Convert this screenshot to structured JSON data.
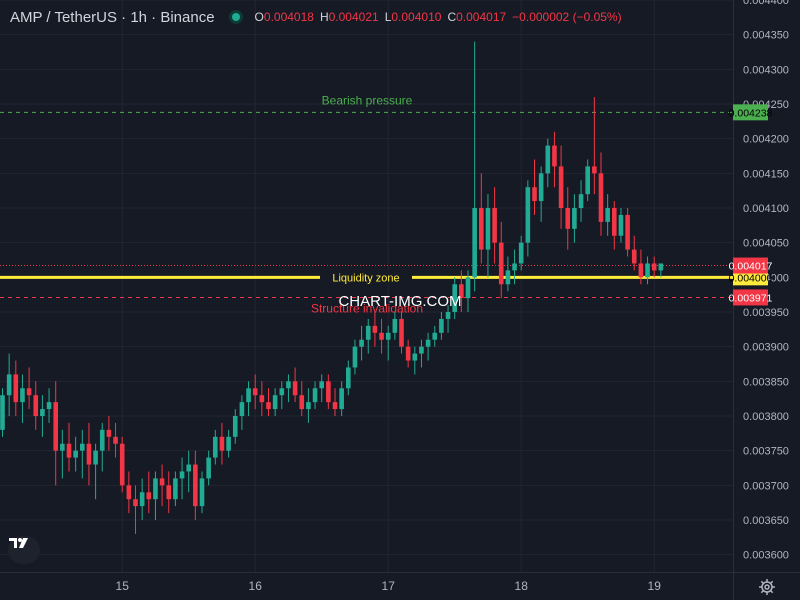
{
  "header": {
    "symbol": "AMP / TetherUS · 1h · Binance",
    "o_label": "O",
    "o_value": "0.004018",
    "h_label": "H",
    "h_value": "0.004021",
    "l_label": "L",
    "l_value": "0.004010",
    "c_label": "C",
    "c_value": "0.004017",
    "change": "−0.000002 (−0.05%)"
  },
  "watermark": "CHART-IMG.COM",
  "colors": {
    "background": "#161a25",
    "grid": "#232632",
    "up": "#22ab94",
    "down": "#f23645",
    "axis_text": "#b2b5be",
    "bearish_line": "#4caf50",
    "liquidity_line": "#ffeb3b",
    "structure_line": "#f23645"
  },
  "icons": {
    "logo": "tradingview-logo-icon",
    "settings": "gear-icon"
  },
  "chart_data": {
    "type": "candlestick",
    "title": "AMP / TetherUS · 1h · Binance",
    "ylim": [
      0.003575,
      0.0044
    ],
    "y_ticks": [
      {
        "value": 0.0044,
        "label": "0.004400"
      },
      {
        "value": 0.00435,
        "label": "0.004350"
      },
      {
        "value": 0.0043,
        "label": "0.004300"
      },
      {
        "value": 0.00425,
        "label": "0.004250"
      },
      {
        "value": 0.0042,
        "label": "0.004200"
      },
      {
        "value": 0.00415,
        "label": "0.004150"
      },
      {
        "value": 0.0041,
        "label": "0.004100"
      },
      {
        "value": 0.00405,
        "label": "0.004050"
      },
      {
        "value": 0.004,
        "label": "0.004000"
      },
      {
        "value": 0.00395,
        "label": "0.003950"
      },
      {
        "value": 0.0039,
        "label": "0.003900"
      },
      {
        "value": 0.00385,
        "label": "0.003850"
      },
      {
        "value": 0.0038,
        "label": "0.003800"
      },
      {
        "value": 0.00375,
        "label": "0.003750"
      },
      {
        "value": 0.0037,
        "label": "0.003700"
      },
      {
        "value": 0.00365,
        "label": "0.003650"
      },
      {
        "value": 0.0036,
        "label": "0.003600"
      }
    ],
    "x_ticks": [
      "15",
      "16",
      "17",
      "18",
      "19"
    ],
    "x_tick_candle_index": [
      18,
      38,
      58,
      78,
      98
    ],
    "candles": [
      [
        0.00378,
        0.00384,
        0.00377,
        0.00383
      ],
      [
        0.00383,
        0.00389,
        0.0038,
        0.00386
      ],
      [
        0.00386,
        0.00388,
        0.0038,
        0.00382
      ],
      [
        0.00382,
        0.00386,
        0.00379,
        0.00384
      ],
      [
        0.00384,
        0.00387,
        0.00381,
        0.00383
      ],
      [
        0.00383,
        0.00385,
        0.00378,
        0.0038
      ],
      [
        0.0038,
        0.00383,
        0.00377,
        0.00381
      ],
      [
        0.00381,
        0.00384,
        0.00379,
        0.00382
      ],
      [
        0.00382,
        0.00385,
        0.0037,
        0.00375
      ],
      [
        0.00375,
        0.00378,
        0.00371,
        0.00376
      ],
      [
        0.00376,
        0.00379,
        0.00372,
        0.00374
      ],
      [
        0.00374,
        0.00377,
        0.00372,
        0.00375
      ],
      [
        0.00375,
        0.00378,
        0.00371,
        0.00376
      ],
      [
        0.00376,
        0.00379,
        0.0037,
        0.00373
      ],
      [
        0.00373,
        0.00376,
        0.00368,
        0.00375
      ],
      [
        0.00375,
        0.00379,
        0.00372,
        0.00378
      ],
      [
        0.00378,
        0.0038,
        0.00375,
        0.00377
      ],
      [
        0.00377,
        0.00379,
        0.00374,
        0.00376
      ],
      [
        0.00376,
        0.00377,
        0.00369,
        0.0037
      ],
      [
        0.0037,
        0.00372,
        0.00366,
        0.00368
      ],
      [
        0.00368,
        0.0037,
        0.00363,
        0.00367
      ],
      [
        0.00367,
        0.00371,
        0.00365,
        0.00369
      ],
      [
        0.00369,
        0.00372,
        0.00366,
        0.00368
      ],
      [
        0.00368,
        0.00372,
        0.00365,
        0.00371
      ],
      [
        0.00371,
        0.00373,
        0.00367,
        0.0037
      ],
      [
        0.0037,
        0.00372,
        0.00366,
        0.00368
      ],
      [
        0.00368,
        0.00372,
        0.00367,
        0.00371
      ],
      [
        0.00371,
        0.00374,
        0.00368,
        0.00372
      ],
      [
        0.00372,
        0.00375,
        0.00369,
        0.00373
      ],
      [
        0.00373,
        0.00375,
        0.00365,
        0.00367
      ],
      [
        0.00367,
        0.00372,
        0.00366,
        0.00371
      ],
      [
        0.00371,
        0.00375,
        0.0037,
        0.00374
      ],
      [
        0.00374,
        0.00378,
        0.00373,
        0.00377
      ],
      [
        0.00377,
        0.00379,
        0.00373,
        0.00375
      ],
      [
        0.00375,
        0.00378,
        0.00374,
        0.00377
      ],
      [
        0.00377,
        0.00381,
        0.00376,
        0.0038
      ],
      [
        0.0038,
        0.00383,
        0.00378,
        0.00382
      ],
      [
        0.00382,
        0.00385,
        0.0038,
        0.00384
      ],
      [
        0.00384,
        0.00386,
        0.00381,
        0.00383
      ],
      [
        0.00383,
        0.00385,
        0.0038,
        0.00382
      ],
      [
        0.00382,
        0.00384,
        0.0038,
        0.00381
      ],
      [
        0.00381,
        0.00384,
        0.0038,
        0.00383
      ],
      [
        0.00383,
        0.00385,
        0.00381,
        0.00384
      ],
      [
        0.00384,
        0.00386,
        0.00382,
        0.00385
      ],
      [
        0.00385,
        0.00387,
        0.00382,
        0.00383
      ],
      [
        0.00383,
        0.00385,
        0.0038,
        0.00381
      ],
      [
        0.00381,
        0.00384,
        0.00379,
        0.00382
      ],
      [
        0.00382,
        0.00385,
        0.00381,
        0.00384
      ],
      [
        0.00384,
        0.00386,
        0.00382,
        0.00385
      ],
      [
        0.00385,
        0.00386,
        0.00381,
        0.00382
      ],
      [
        0.00382,
        0.00384,
        0.0038,
        0.00381
      ],
      [
        0.00381,
        0.00385,
        0.0038,
        0.00384
      ],
      [
        0.00384,
        0.00388,
        0.00383,
        0.00387
      ],
      [
        0.00387,
        0.00391,
        0.00386,
        0.0039
      ],
      [
        0.0039,
        0.00393,
        0.00388,
        0.00391
      ],
      [
        0.00391,
        0.00394,
        0.00389,
        0.00393
      ],
      [
        0.00393,
        0.00395,
        0.0039,
        0.00392
      ],
      [
        0.00392,
        0.00394,
        0.00389,
        0.00391
      ],
      [
        0.00391,
        0.00393,
        0.00388,
        0.00392
      ],
      [
        0.00392,
        0.00395,
        0.00391,
        0.00394
      ],
      [
        0.00394,
        0.00395,
        0.00389,
        0.0039
      ],
      [
        0.0039,
        0.00391,
        0.00387,
        0.00388
      ],
      [
        0.00388,
        0.0039,
        0.00386,
        0.00389
      ],
      [
        0.00389,
        0.00391,
        0.00387,
        0.0039
      ],
      [
        0.0039,
        0.00392,
        0.00388,
        0.00391
      ],
      [
        0.00391,
        0.00393,
        0.0039,
        0.00392
      ],
      [
        0.00392,
        0.00395,
        0.00391,
        0.00394
      ],
      [
        0.00394,
        0.00396,
        0.00392,
        0.00395
      ],
      [
        0.00395,
        0.004,
        0.00394,
        0.00399
      ],
      [
        0.00399,
        0.00401,
        0.00395,
        0.00397
      ],
      [
        0.00397,
        0.00401,
        0.00395,
        0.004
      ],
      [
        0.004,
        0.00434,
        0.00398,
        0.0041
      ],
      [
        0.0041,
        0.00415,
        0.00402,
        0.00404
      ],
      [
        0.00404,
        0.00412,
        0.004,
        0.0041
      ],
      [
        0.0041,
        0.00413,
        0.00402,
        0.00405
      ],
      [
        0.00405,
        0.00408,
        0.00397,
        0.00399
      ],
      [
        0.00399,
        0.00403,
        0.00398,
        0.00401
      ],
      [
        0.00401,
        0.00404,
        0.00399,
        0.00402
      ],
      [
        0.00402,
        0.00406,
        0.00401,
        0.00405
      ],
      [
        0.00405,
        0.00414,
        0.00403,
        0.00413
      ],
      [
        0.00413,
        0.00417,
        0.00409,
        0.00411
      ],
      [
        0.00411,
        0.00416,
        0.00408,
        0.00415
      ],
      [
        0.00415,
        0.0042,
        0.00413,
        0.00419
      ],
      [
        0.00419,
        0.00421,
        0.00413,
        0.00416
      ],
      [
        0.00416,
        0.00419,
        0.00407,
        0.0041
      ],
      [
        0.0041,
        0.00413,
        0.00404,
        0.00407
      ],
      [
        0.00407,
        0.00412,
        0.00405,
        0.0041
      ],
      [
        0.0041,
        0.00414,
        0.00408,
        0.00412
      ],
      [
        0.00412,
        0.00417,
        0.00411,
        0.00416
      ],
      [
        0.00416,
        0.00426,
        0.00412,
        0.00415
      ],
      [
        0.00415,
        0.00418,
        0.00406,
        0.00408
      ],
      [
        0.00408,
        0.00412,
        0.00406,
        0.0041
      ],
      [
        0.0041,
        0.00411,
        0.00404,
        0.00406
      ],
      [
        0.00406,
        0.0041,
        0.00405,
        0.00409
      ],
      [
        0.00409,
        0.0041,
        0.00403,
        0.00404
      ],
      [
        0.00404,
        0.00406,
        0.00401,
        0.00402
      ],
      [
        0.00402,
        0.00404,
        0.00399,
        0.004
      ],
      [
        0.004,
        0.00403,
        0.00399,
        0.00402
      ],
      [
        0.00402,
        0.00403,
        0.004,
        0.00401
      ],
      [
        0.00401,
        0.00402,
        0.004,
        0.00402
      ]
    ],
    "annotations": [
      {
        "label": "Bearish pressure",
        "value": 0.004238,
        "price_label": "0.004238",
        "style": "dashed",
        "color": "#4caf50",
        "text_color": "#4caf50"
      },
      {
        "label": "Liquidity zone",
        "value": 0.004,
        "price_label": "0.004000",
        "style": "solid",
        "color": "#ffeb3b",
        "text_color": "#ffeb3b"
      },
      {
        "label": "Structure invalidation",
        "value": 0.003971,
        "price_label": "0.003971",
        "style": "dashed",
        "color": "#f23645",
        "text_color": "#f23645"
      }
    ],
    "last_price": {
      "value": 0.004017,
      "label": "0.004017",
      "color": "#f23645"
    }
  }
}
